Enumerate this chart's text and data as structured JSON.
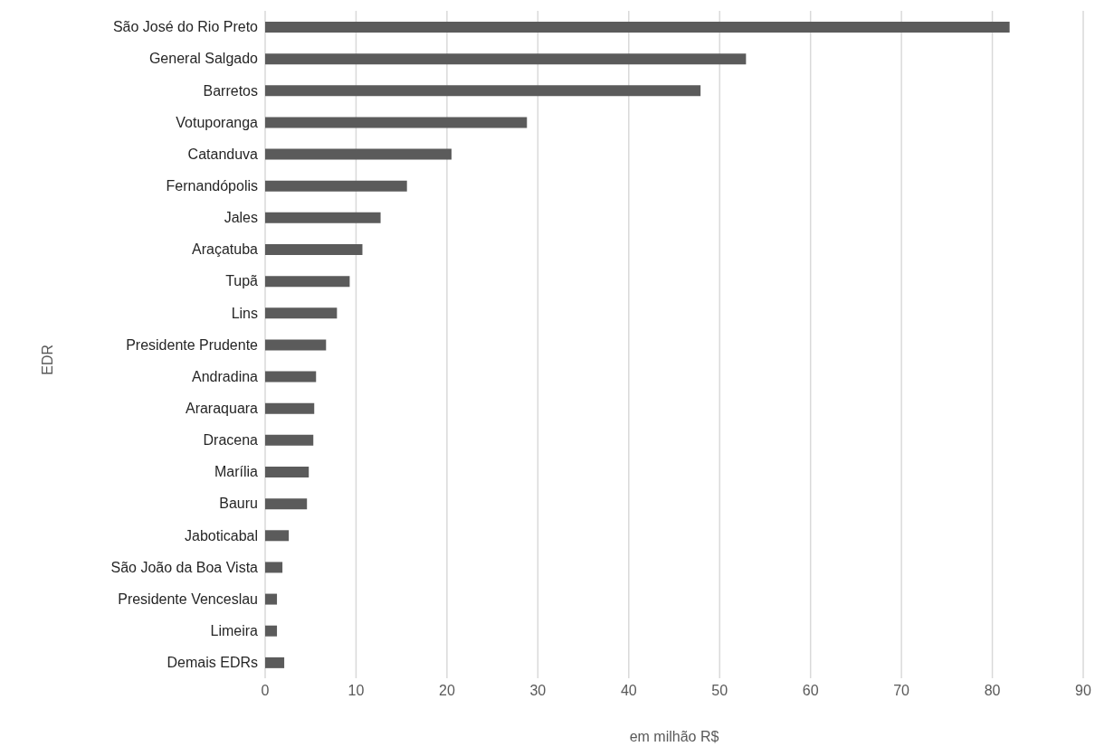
{
  "chart_data": {
    "type": "bar",
    "orientation": "horizontal",
    "categories": [
      "São José do Rio Preto",
      "General Salgado",
      "Barretos",
      "Votuporanga",
      "Catanduva",
      "Fernandópolis",
      "Jales",
      "Araçatuba",
      "Tupã",
      "Lins",
      "Presidente Prudente",
      "Andradina",
      "Araraquara",
      "Dracena",
      "Marília",
      "Bauru",
      "Jaboticabal",
      "São João da Boa Vista",
      "Presidente Venceslau",
      "Limeira",
      "Demais EDRs"
    ],
    "values": [
      81.9,
      52.9,
      47.9,
      28.8,
      20.5,
      15.6,
      12.7,
      10.7,
      9.3,
      7.9,
      6.7,
      5.6,
      5.4,
      5.3,
      4.8,
      4.6,
      2.6,
      1.9,
      1.3,
      1.3,
      2.1
    ],
    "color": "#5b5b5b",
    "xlim": [
      0,
      90
    ],
    "xticks": [
      0,
      10,
      20,
      30,
      40,
      50,
      60,
      70,
      80,
      90
    ],
    "grid": "x",
    "xlabel": "em milhão R$",
    "ylabel": "EDR"
  }
}
